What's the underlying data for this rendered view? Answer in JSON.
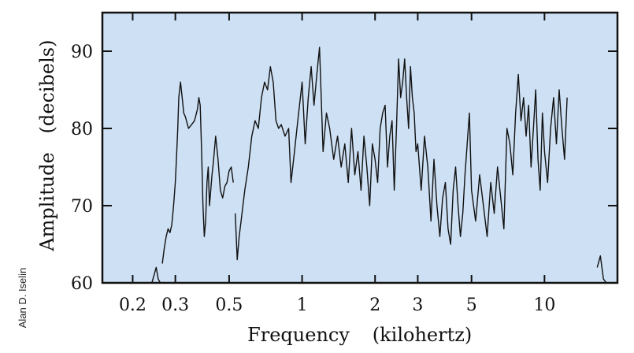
{
  "chart_data": {
    "type": "line",
    "title": "",
    "xlabel": "Frequency",
    "xunit": "(kilohertz)",
    "ylabel": "Amplitude",
    "yunit": "(decibels)",
    "x_scale": "log",
    "xlim": [
      0.15,
      20
    ],
    "ylim": [
      60,
      95
    ],
    "grid": false,
    "legend": "none",
    "x_ticks": [
      {
        "value": 0.2,
        "label": "0.2"
      },
      {
        "value": 0.3,
        "label": "0.3"
      },
      {
        "value": 0.5,
        "label": "0.5"
      },
      {
        "value": 1,
        "label": "1"
      },
      {
        "value": 2,
        "label": "2"
      },
      {
        "value": 3,
        "label": "3"
      },
      {
        "value": 5,
        "label": "5"
      },
      {
        "value": 10,
        "label": "10"
      }
    ],
    "y_ticks": [
      {
        "value": 60,
        "label": "60"
      },
      {
        "value": 70,
        "label": "70"
      },
      {
        "value": 80,
        "label": "80"
      },
      {
        "value": 90,
        "label": "90"
      }
    ],
    "colors": {
      "plot_background": "#cde0f4",
      "line": "#111111",
      "frame": "#111111"
    },
    "series": [
      {
        "x": [
          0.24,
          0.245,
          0.25,
          0.255,
          0.26,
          0.265,
          0.27,
          0.275,
          0.28,
          0.285,
          0.29,
          0.295,
          0.3,
          0.303,
          0.307,
          0.31,
          0.315,
          0.32,
          0.325,
          0.33,
          0.34,
          0.35,
          0.36,
          0.37,
          0.375,
          0.38,
          0.385,
          0.39,
          0.395,
          0.4,
          0.405,
          0.41,
          0.415,
          0.42,
          0.425,
          0.43,
          0.44,
          0.45,
          0.46,
          0.47,
          0.48,
          0.49,
          0.5,
          0.51,
          0.52,
          0.53,
          0.54,
          0.55,
          0.56,
          0.58,
          0.6,
          0.62,
          0.64,
          0.66,
          0.68,
          0.7,
          0.72,
          0.74,
          0.76,
          0.78,
          0.8,
          0.82,
          0.85,
          0.88,
          0.9,
          0.93,
          0.96,
          1.0,
          1.03,
          1.06,
          1.09,
          1.12,
          1.15,
          1.18,
          1.22,
          1.26,
          1.3,
          1.35,
          1.4,
          1.45,
          1.5,
          1.55,
          1.6,
          1.65,
          1.7,
          1.75,
          1.8,
          1.85,
          1.9,
          1.95,
          2.0,
          2.05,
          2.1,
          2.15,
          2.2,
          2.25,
          2.3,
          2.35,
          2.4,
          2.45,
          2.5,
          2.55,
          2.6,
          2.65,
          2.7,
          2.75,
          2.8,
          2.85,
          2.9,
          2.95,
          3.0,
          3.1,
          3.2,
          3.3,
          3.4,
          3.5,
          3.6,
          3.7,
          3.8,
          3.9,
          4.0,
          4.1,
          4.2,
          4.3,
          4.4,
          4.5,
          4.6,
          4.7,
          4.8,
          4.9,
          5.0,
          5.2,
          5.4,
          5.6,
          5.8,
          6.0,
          6.2,
          6.4,
          6.6,
          6.8,
          7.0,
          7.2,
          7.4,
          7.6,
          7.8,
          8.0,
          8.2,
          8.4,
          8.6,
          8.8,
          9.0,
          9.2,
          9.4,
          9.6,
          9.8,
          10.0,
          10.3,
          10.6,
          10.9,
          11.2,
          11.5,
          11.8,
          12.1,
          12.4,
          12.7,
          13.0,
          13.3,
          13.6,
          13.9,
          14.2,
          14.5,
          14.8
        ],
        "values": [
          60.0,
          61.0,
          62.0,
          60.5,
          60.0,
          62.5,
          64.5,
          66.0,
          67.0,
          66.5,
          67.5,
          70.0,
          73.0,
          76.0,
          80.0,
          84.0,
          86.0,
          84.0,
          82.0,
          81.5,
          80.0,
          80.5,
          81.0,
          82.5,
          84.0,
          83.0,
          77.0,
          70.0,
          66.0,
          68.0,
          73.0,
          75.0,
          70.0,
          72.0,
          74.0,
          75.5,
          79.0,
          76.0,
          72.0,
          71.0,
          72.5,
          73.0,
          74.5,
          75.0,
          73.0,
          69.0,
          63.0,
          66.0,
          68.0,
          72.0,
          75.0,
          79.0,
          81.0,
          80.0,
          84.0,
          86.0,
          85.0,
          88.0,
          86.0,
          81.0,
          80.0,
          80.5,
          79.0,
          80.0,
          73.0,
          77.0,
          81.0,
          86.0,
          78.0,
          84.0,
          88.0,
          83.0,
          87.0,
          90.5,
          77.0,
          82.0,
          80.0,
          76.0,
          79.0,
          75.0,
          78.0,
          73.0,
          80.0,
          74.0,
          77.0,
          72.0,
          79.0,
          75.0,
          70.0,
          78.0,
          76.0,
          73.0,
          80.0,
          82.0,
          83.0,
          75.0,
          79.0,
          81.0,
          72.0,
          80.0,
          89.0,
          84.0,
          86.0,
          89.0,
          84.0,
          80.0,
          88.0,
          84.0,
          82.0,
          77.0,
          78.0,
          72.0,
          79.0,
          75.0,
          68.0,
          76.0,
          70.0,
          66.0,
          71.0,
          73.0,
          67.0,
          65.0,
          72.0,
          75.0,
          70.0,
          66.0,
          69.0,
          74.0,
          78.0,
          82.0,
          72.0,
          68.0,
          74.0,
          70.0,
          66.0,
          73.0,
          69.0,
          75.0,
          71.0,
          67.0,
          80.0,
          78.0,
          74.0,
          82.0,
          87.0,
          81.0,
          84.0,
          79.0,
          83.0,
          75.0,
          80.0,
          85.0,
          76.0,
          72.0,
          82.0,
          77.0,
          73.0,
          80.0,
          84.0,
          78.0,
          85.0,
          80.0,
          76.0,
          84.0,
          82.0,
          78.0,
          74.0,
          72.0,
          71.0,
          68.0,
          65.0,
          60.0
        ],
        "segments": [
          [
            0,
            4
          ],
          [
            5,
            44
          ],
          [
            45,
            163
          ]
        ]
      },
      {
        "x": [
          16.5,
          17.0,
          17.5,
          18.0
        ],
        "values": [
          62.0,
          63.5,
          60.5,
          60.0
        ]
      }
    ]
  },
  "credit": "Alan D. Iselin"
}
